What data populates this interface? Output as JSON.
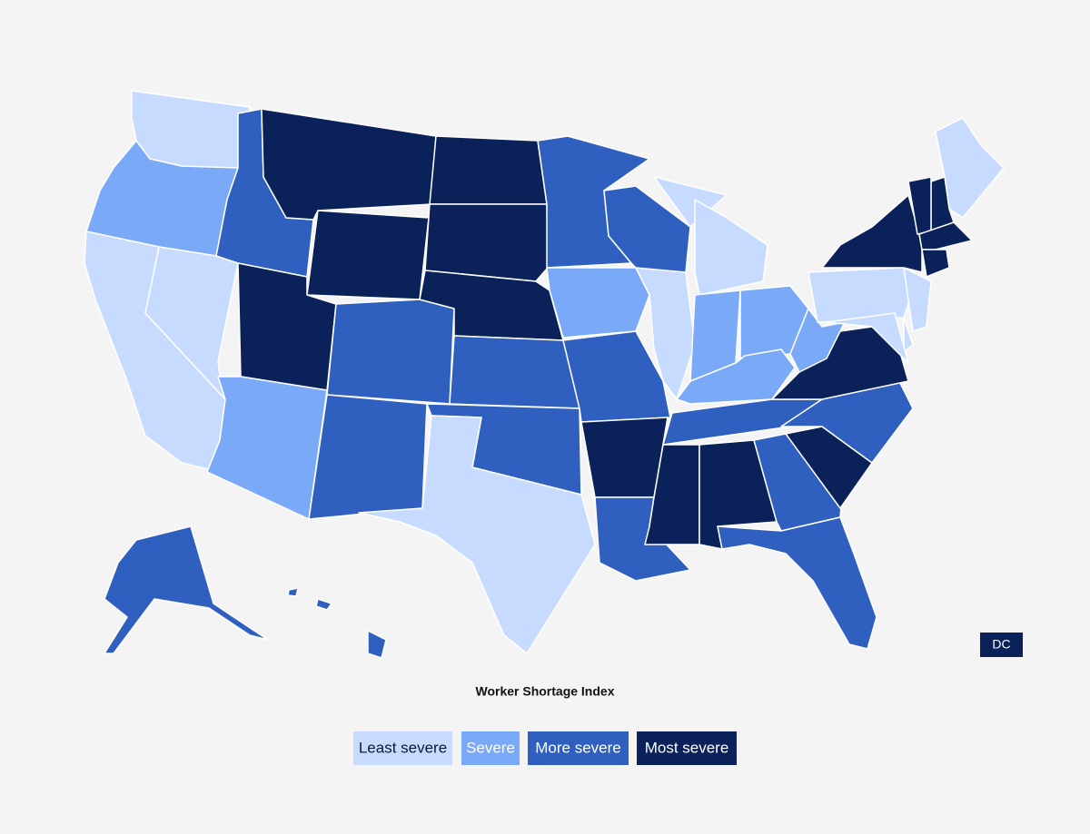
{
  "map": {
    "title": "Worker Shortage Index",
    "legend": [
      {
        "label": "Least severe",
        "color": "#c6dbff",
        "text_color": "#0a1a3a"
      },
      {
        "label": "Severe",
        "color": "#7aa9f7",
        "text_color": "#ffffff"
      },
      {
        "label": "More severe",
        "color": "#2f5fbf",
        "text_color": "#ffffff"
      },
      {
        "label": "Most severe",
        "color": "#0a215a",
        "text_color": "#ffffff"
      }
    ],
    "regions": [
      0,
      1,
      0,
      0,
      2,
      3,
      3,
      3,
      1,
      2,
      2,
      3,
      3,
      3,
      2,
      2,
      0,
      2,
      1,
      2,
      3,
      2,
      2,
      0,
      0,
      0,
      1,
      1,
      1,
      2,
      3,
      3,
      2,
      2,
      3,
      2,
      3,
      1,
      0,
      3,
      0,
      0,
      0,
      3,
      3,
      3,
      3,
      0,
      2,
      2,
      2,
      2
    ],
    "dc": {
      "label": "DC",
      "level": 3
    }
  }
}
